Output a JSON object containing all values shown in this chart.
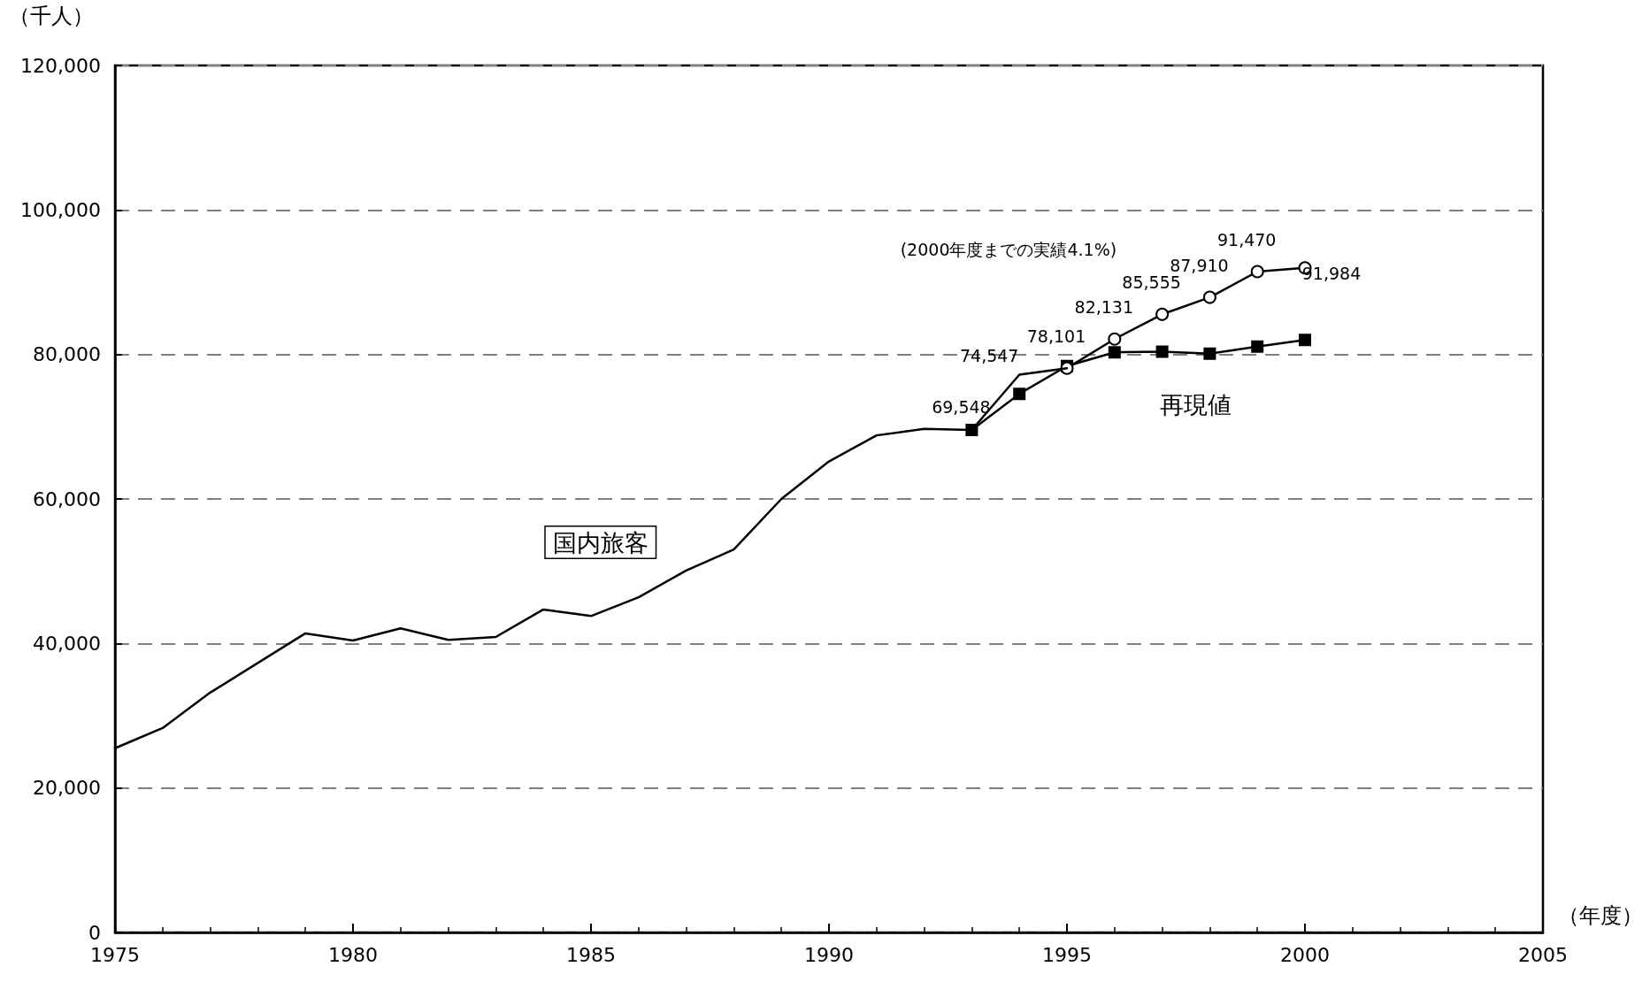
{
  "chart_data": {
    "type": "line",
    "xlabel": "（年度）",
    "ylabel": "（千人）",
    "annotations": [
      "(2000年度までの実績4.1%)"
    ],
    "xlim": [
      1975,
      2005
    ],
    "xticks": [
      1975,
      1980,
      1985,
      1990,
      1995,
      2000,
      2005
    ],
    "ylim": [
      0,
      120000
    ],
    "yticks": [
      {
        "value": 0,
        "label": "0"
      },
      {
        "value": 20000,
        "label": "20,000"
      },
      {
        "value": 40000,
        "label": "40,000"
      },
      {
        "value": 60000,
        "label": "60,000"
      },
      {
        "value": 80000,
        "label": "80,000"
      },
      {
        "value": 100000,
        "label": "100,000"
      },
      {
        "value": 120000,
        "label": "120,000"
      }
    ],
    "grid": "y",
    "legend": false,
    "line_style": "solid",
    "series": [
      {
        "name": "国内旅客",
        "color": "#000000",
        "marker": "none",
        "x": [
          1975,
          1976,
          1977,
          1978,
          1979,
          1980,
          1981,
          1982,
          1983,
          1984,
          1985,
          1986,
          1987,
          1988,
          1989,
          1990,
          1991,
          1992,
          1993,
          1994,
          1995
        ],
        "values": [
          25500,
          28300,
          33200,
          37300,
          41400,
          40400,
          42100,
          40500,
          40900,
          44700,
          43800,
          46400,
          50100,
          53000,
          60000,
          65200,
          68800,
          69700,
          69548,
          77200,
          78101
        ],
        "value_labels": [
          null,
          null,
          null,
          null,
          null,
          null,
          null,
          null,
          null,
          null,
          null,
          null,
          null,
          null,
          null,
          null,
          null,
          null,
          "69,548",
          null,
          null
        ]
      },
      {
        "color": "#000000",
        "marker": "circle",
        "x": [
          1995,
          1996,
          1997,
          1998,
          1999,
          2000
        ],
        "values": [
          78101,
          82131,
          85555,
          87910,
          91470,
          91984
        ],
        "value_labels": [
          "78,101",
          "82,131",
          "85,555",
          "87,910",
          "91,470",
          "91,984"
        ]
      },
      {
        "name": "再現値",
        "color": "#000000",
        "marker": "square",
        "x": [
          1993,
          1994,
          1995,
          1996,
          1997,
          1998,
          1999,
          2000
        ],
        "values": [
          69548,
          74547,
          78400,
          80300,
          80400,
          80100,
          81100,
          82000
        ],
        "value_labels": [
          null,
          "74,547",
          null,
          null,
          null,
          null,
          null,
          null
        ]
      }
    ]
  }
}
